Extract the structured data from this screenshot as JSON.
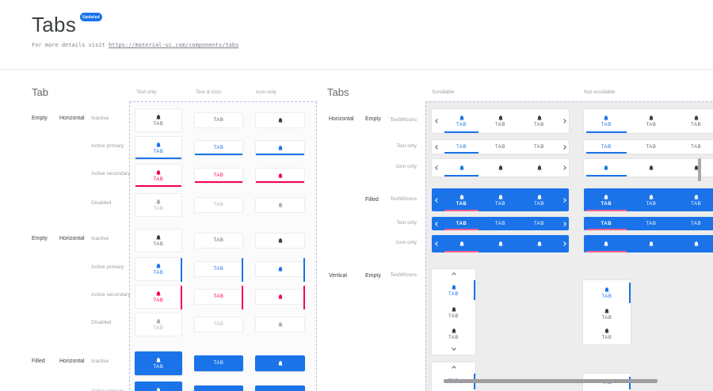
{
  "page": {
    "title": "Tabs",
    "badge": "Updated",
    "details_prefix": "For more details visit ",
    "details_link": "https://material-ui.com/components/tabs"
  },
  "colors": {
    "primary": "#1a73e8",
    "secondary": "#f50057",
    "filled_underline": "#ff6090",
    "inactive_icon": "#3c4043",
    "inactive_text": "#5f6368",
    "disabled": "#aeb3b9",
    "filled_bg": "#1a73e8",
    "dashed_border": "#b7bfe3",
    "right_panel_bg": "#ededed"
  },
  "tab_label": "TAB",
  "left_panel": {
    "heading": "Tab",
    "columns": [
      "Text only",
      "Text & Icon",
      "Icon only"
    ],
    "groups": [
      {
        "kind": "Empty",
        "orientation": "Horizontal",
        "indicator": "underline",
        "rows": [
          {
            "state": "Inactive",
            "style": "inactive"
          },
          {
            "state": "Active primary",
            "style": "primary"
          },
          {
            "state": "Active secondary",
            "style": "secondary"
          },
          {
            "state": "Disabled",
            "style": "disabled"
          }
        ]
      },
      {
        "kind": "Empty",
        "orientation": "Horizontal",
        "indicator": "side",
        "rows": [
          {
            "state": "Inactive",
            "style": "inactive"
          },
          {
            "state": "Active primary",
            "style": "primary"
          },
          {
            "state": "Active secondary",
            "style": "secondary"
          },
          {
            "state": "Disabled",
            "style": "disabled"
          }
        ]
      },
      {
        "kind": "Filled",
        "orientation": "Horizontal",
        "indicator": "underline",
        "rows": [
          {
            "state": "Inactive",
            "style": "filled"
          },
          {
            "state": "Active primary",
            "style": "filled"
          }
        ]
      }
    ]
  },
  "right_panel": {
    "heading": "Tabs",
    "columns": [
      "Scrollable",
      "Not scrollable"
    ],
    "horizontal_groups": [
      {
        "kind": "Empty",
        "orientation": "Horizontal",
        "filled": false,
        "rows": [
          {
            "label": "TextWIcons",
            "mode": "texticon"
          },
          {
            "label": "Text only",
            "mode": "text"
          },
          {
            "label": "Icon only",
            "mode": "icon"
          }
        ]
      },
      {
        "kind": "Filled",
        "filled": true,
        "rows": [
          {
            "label": "TextWIcons",
            "mode": "texticon"
          },
          {
            "label": "Text only",
            "mode": "text"
          },
          {
            "label": "Icon only",
            "mode": "icon"
          }
        ]
      }
    ],
    "vertical_group": {
      "orientation": "Vertical",
      "kind": "Empty",
      "row_label": "TextWIcons"
    }
  }
}
